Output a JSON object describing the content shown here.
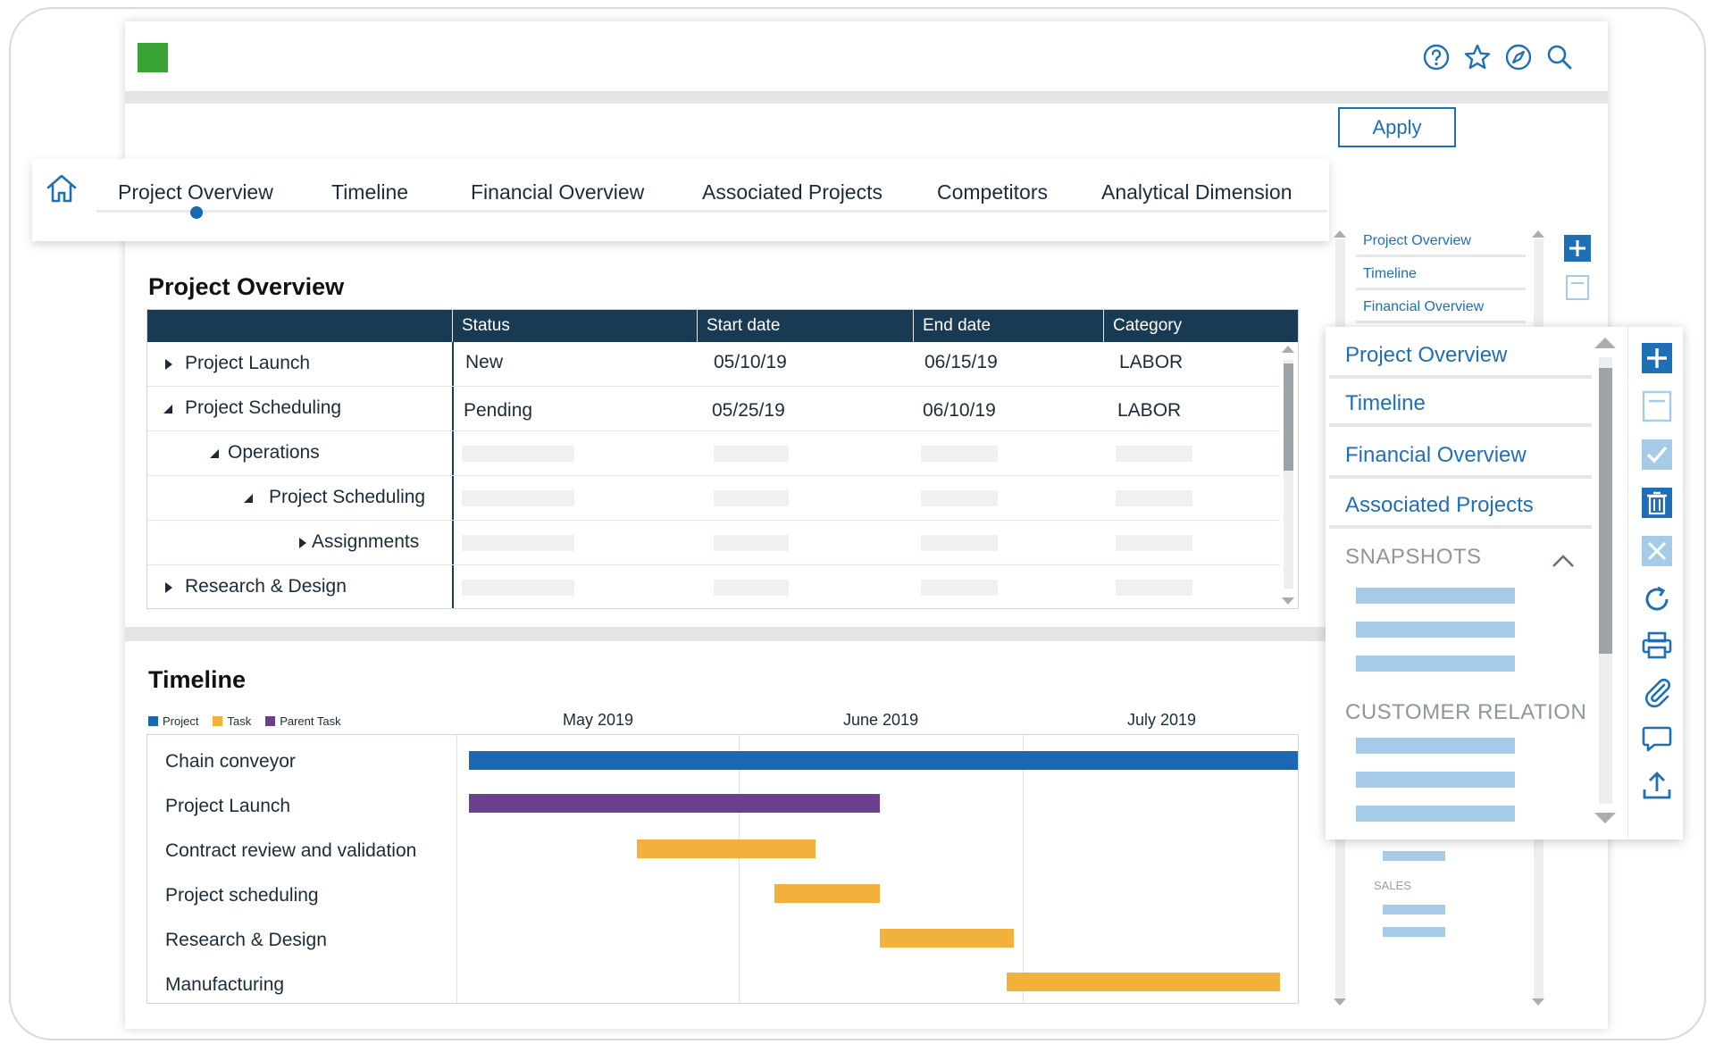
{
  "colors": {
    "accent": "#1f6fb6",
    "header_dark": "#183a52",
    "logo_green": "#3aa335",
    "project_blue": "#1a67b3",
    "task_orange": "#f2b13c",
    "parent_purple": "#6d3f8f",
    "placeholder_blue": "#a6cbe9"
  },
  "header": {
    "logo": "logo",
    "icons": [
      "help-icon",
      "star-icon",
      "compass-icon",
      "search-icon"
    ]
  },
  "apply_label": "Apply",
  "tabs": {
    "home": "home-icon",
    "items": [
      "Project Overview",
      "Timeline",
      "Financial Overview",
      "Associated Projects",
      "Competitors",
      "Analytical Dimension"
    ],
    "active": "Project Overview"
  },
  "project_overview": {
    "title": "Project Overview",
    "columns": [
      "",
      "Status",
      "Start date",
      "End date",
      "Category"
    ],
    "rows": [
      {
        "name": "Project Launch",
        "status": "New",
        "start": "05/10/19",
        "end": "06/15/19",
        "category": "LABOR"
      },
      {
        "name": "Project Scheduling",
        "status": "Pending",
        "start": "05/25/19",
        "end": "06/10/19",
        "category": "LABOR"
      },
      {
        "name": "Operations",
        "status": "",
        "start": "",
        "end": "",
        "category": ""
      },
      {
        "name": "Project Scheduling",
        "status": "",
        "start": "",
        "end": "",
        "category": ""
      },
      {
        "name": "Assignments",
        "status": "",
        "start": "",
        "end": "",
        "category": ""
      },
      {
        "name": "Research & Design",
        "status": "",
        "start": "",
        "end": "",
        "category": ""
      }
    ]
  },
  "timeline": {
    "title": "Timeline",
    "legend": [
      "Project",
      "Task",
      "Parent Task"
    ],
    "months": [
      "May 2019",
      "June 2019",
      "July 2019"
    ],
    "rows": [
      {
        "label": "Chain conveyor",
        "type": "Project"
      },
      {
        "label": "Project Launch",
        "type": "Parent Task"
      },
      {
        "label": "Contract review and validation",
        "type": "Task"
      },
      {
        "label": "Project scheduling",
        "type": "Task"
      },
      {
        "label": "Research & Design",
        "type": "Task"
      },
      {
        "label": "Manufacturing",
        "type": "Task"
      }
    ]
  },
  "back_sidebar": {
    "items": [
      "Project Overview",
      "Timeline",
      "Financial Overview"
    ],
    "sales_label": "SALES"
  },
  "front_panel": {
    "items": [
      "Project Overview",
      "Timeline",
      "Financial Overview",
      "Associated Projects"
    ],
    "snapshots_heading": "SNAPSHOTS",
    "customer_heading": "CUSTOMER RELATION",
    "toolbar": [
      "add-icon",
      "save-icon",
      "check-icon",
      "trash-icon",
      "close-icon",
      "refresh-icon",
      "print-icon",
      "attach-icon",
      "comment-icon",
      "upload-icon"
    ]
  }
}
